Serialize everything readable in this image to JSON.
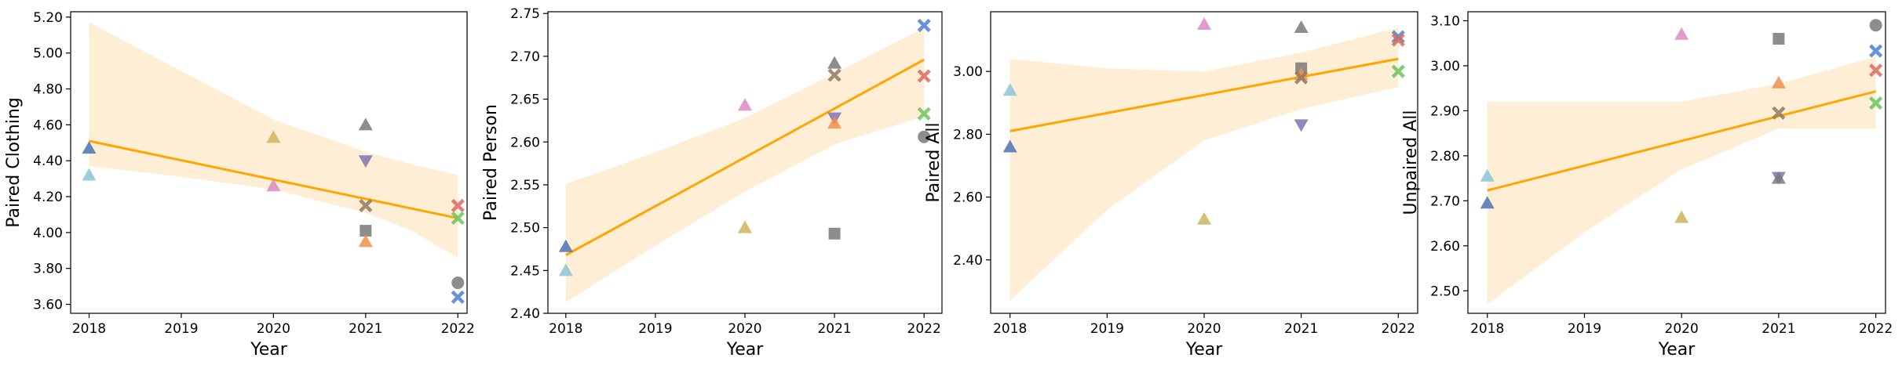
{
  "chart_data": [
    {
      "type": "scatter",
      "xlabel": "Year",
      "ylabel": "Paired Clothing",
      "xticks": [
        2018,
        2019,
        2020,
        2021,
        2022
      ],
      "yticks": [
        3.6,
        3.8,
        4.0,
        4.2,
        4.4,
        4.6,
        4.8,
        5.0,
        5.2
      ],
      "xlim": [
        2017.8,
        2022.1
      ],
      "ylim": [
        3.55,
        5.23
      ],
      "regression": {
        "start": [
          2018,
          4.51
        ],
        "end": [
          2022,
          4.08
        ]
      },
      "confidence_band": [
        [
          2018,
          4.37,
          5.17
        ],
        [
          2019,
          4.31,
          4.9
        ],
        [
          2020,
          4.24,
          4.63
        ],
        [
          2021,
          4.11,
          4.45
        ],
        [
          2021.5,
          4.01,
          4.38
        ],
        [
          2022,
          3.86,
          4.32
        ]
      ],
      "points": [
        {
          "x": 2018,
          "y": 4.47,
          "marker": "triangle-up",
          "color": "#4c72b0"
        },
        {
          "x": 2018,
          "y": 4.32,
          "marker": "triangle-up",
          "color": "#8cc5d6"
        },
        {
          "x": 2020,
          "y": 4.53,
          "marker": "triangle-up",
          "color": "#ccb45c"
        },
        {
          "x": 2020,
          "y": 4.26,
          "marker": "triangle-up",
          "color": "#da8bc3"
        },
        {
          "x": 2021,
          "y": 4.6,
          "marker": "triangle-up",
          "color": "#797979"
        },
        {
          "x": 2021,
          "y": 4.4,
          "marker": "triangle-down",
          "color": "#8172b3"
        },
        {
          "x": 2021,
          "y": 4.15,
          "marker": "x",
          "color": "#937860"
        },
        {
          "x": 2021,
          "y": 4.01,
          "marker": "square",
          "color": "#797979"
        },
        {
          "x": 2021,
          "y": 3.95,
          "marker": "triangle-up",
          "color": "#f28e4c"
        },
        {
          "x": 2022,
          "y": 4.15,
          "marker": "x",
          "color": "#dd6a5c"
        },
        {
          "x": 2022,
          "y": 4.08,
          "marker": "x",
          "color": "#6ac45c"
        },
        {
          "x": 2022,
          "y": 3.72,
          "marker": "circle",
          "color": "#797979"
        },
        {
          "x": 2022,
          "y": 3.64,
          "marker": "x",
          "color": "#4e7fd6"
        }
      ]
    },
    {
      "type": "scatter",
      "xlabel": "Year",
      "ylabel": "Paired Person",
      "xticks": [
        2018,
        2019,
        2020,
        2021,
        2022
      ],
      "yticks": [
        2.4,
        2.45,
        2.5,
        2.55,
        2.6,
        2.65,
        2.7,
        2.75
      ],
      "xlim": [
        2017.8,
        2022.2
      ],
      "ylim": [
        2.4,
        2.752
      ],
      "regression": {
        "start": [
          2018,
          2.468
        ],
        "end": [
          2022,
          2.696
        ]
      },
      "confidence_band": [
        [
          2018,
          2.413,
          2.551
        ],
        [
          2019,
          2.479,
          2.588
        ],
        [
          2020,
          2.542,
          2.628
        ],
        [
          2021,
          2.597,
          2.68
        ],
        [
          2022,
          2.63,
          2.733
        ]
      ],
      "points": [
        {
          "x": 2018,
          "y": 2.478,
          "marker": "triangle-up",
          "color": "#4c72b0"
        },
        {
          "x": 2018,
          "y": 2.45,
          "marker": "triangle-up",
          "color": "#8cc5d6"
        },
        {
          "x": 2020,
          "y": 2.643,
          "marker": "triangle-up",
          "color": "#da8bc3"
        },
        {
          "x": 2020,
          "y": 2.5,
          "marker": "triangle-up",
          "color": "#ccb45c"
        },
        {
          "x": 2021,
          "y": 2.692,
          "marker": "triangle-up",
          "color": "#797979"
        },
        {
          "x": 2021,
          "y": 2.678,
          "marker": "x",
          "color": "#937860"
        },
        {
          "x": 2021,
          "y": 2.628,
          "marker": "triangle-down",
          "color": "#8172b3"
        },
        {
          "x": 2021,
          "y": 2.622,
          "marker": "triangle-up",
          "color": "#f28e4c"
        },
        {
          "x": 2021,
          "y": 2.493,
          "marker": "square",
          "color": "#797979"
        },
        {
          "x": 2022,
          "y": 2.736,
          "marker": "x",
          "color": "#4e7fd6"
        },
        {
          "x": 2022,
          "y": 2.677,
          "marker": "x",
          "color": "#dd6a5c"
        },
        {
          "x": 2022,
          "y": 2.633,
          "marker": "x",
          "color": "#6ac45c"
        },
        {
          "x": 2022,
          "y": 2.606,
          "marker": "circle",
          "color": "#797979"
        }
      ]
    },
    {
      "type": "scatter",
      "xlabel": "Year",
      "ylabel": "Paired All",
      "xticks": [
        2018,
        2019,
        2020,
        2021,
        2022
      ],
      "yticks": [
        2.4,
        2.6,
        2.8,
        3.0
      ],
      "xlim": [
        2017.8,
        2022.2
      ],
      "ylim": [
        2.23,
        3.19
      ],
      "regression": {
        "start": [
          2018,
          2.81
        ],
        "end": [
          2022,
          3.04
        ]
      },
      "confidence_band": [
        [
          2018,
          2.27,
          3.04
        ],
        [
          2019,
          2.56,
          3.01
        ],
        [
          2020,
          2.78,
          3.0
        ],
        [
          2021,
          2.88,
          3.06
        ],
        [
          2022,
          2.95,
          3.14
        ]
      ],
      "points": [
        {
          "x": 2018,
          "y": 2.94,
          "marker": "triangle-up",
          "color": "#8cc5d6"
        },
        {
          "x": 2018,
          "y": 2.76,
          "marker": "triangle-up",
          "color": "#4c72b0"
        },
        {
          "x": 2020,
          "y": 3.15,
          "marker": "triangle-up",
          "color": "#da8bc3"
        },
        {
          "x": 2020,
          "y": 2.53,
          "marker": "triangle-up",
          "color": "#ccb45c"
        },
        {
          "x": 2021,
          "y": 3.14,
          "marker": "triangle-up",
          "color": "#797979"
        },
        {
          "x": 2021,
          "y": 3.01,
          "marker": "square",
          "color": "#797979"
        },
        {
          "x": 2021,
          "y": 2.99,
          "marker": "triangle-up",
          "color": "#f28e4c"
        },
        {
          "x": 2021,
          "y": 2.98,
          "marker": "x",
          "color": "#937860"
        },
        {
          "x": 2021,
          "y": 2.83,
          "marker": "triangle-down",
          "color": "#8172b3"
        },
        {
          "x": 2022,
          "y": 3.11,
          "marker": "x",
          "color": "#4e7fd6"
        },
        {
          "x": 2022,
          "y": 3.1,
          "marker": "x",
          "color": "#dd6a5c"
        },
        {
          "x": 2022,
          "y": 3.0,
          "marker": "x",
          "color": "#6ac45c"
        }
      ]
    },
    {
      "type": "scatter",
      "xlabel": "Year",
      "ylabel": "Unpaired All",
      "xticks": [
        2018,
        2019,
        2020,
        2021,
        2022
      ],
      "yticks": [
        2.5,
        2.6,
        2.7,
        2.8,
        2.9,
        3.0,
        3.1
      ],
      "xlim": [
        2017.8,
        2022.1
      ],
      "ylim": [
        2.45,
        3.12
      ],
      "regression": {
        "start": [
          2018,
          2.723
        ],
        "end": [
          2022,
          2.943
        ]
      },
      "confidence_band": [
        [
          2018,
          2.47,
          2.92
        ],
        [
          2019,
          2.63,
          2.92
        ],
        [
          2020,
          2.77,
          2.92
        ],
        [
          2021,
          2.86,
          2.96
        ],
        [
          2022,
          2.86,
          3.02
        ]
      ],
      "points": [
        {
          "x": 2018,
          "y": 2.755,
          "marker": "triangle-up",
          "color": "#8cc5d6"
        },
        {
          "x": 2018,
          "y": 2.695,
          "marker": "triangle-up",
          "color": "#4c72b0"
        },
        {
          "x": 2020,
          "y": 3.07,
          "marker": "triangle-up",
          "color": "#da8bc3"
        },
        {
          "x": 2020,
          "y": 2.663,
          "marker": "triangle-up",
          "color": "#ccb45c"
        },
        {
          "x": 2021,
          "y": 3.06,
          "marker": "square",
          "color": "#797979"
        },
        {
          "x": 2021,
          "y": 2.962,
          "marker": "triangle-up",
          "color": "#f28e4c"
        },
        {
          "x": 2021,
          "y": 2.895,
          "marker": "x",
          "color": "#937860"
        },
        {
          "x": 2021,
          "y": 2.752,
          "marker": "triangle-down",
          "color": "#8172b3"
        },
        {
          "x": 2021,
          "y": 2.75,
          "marker": "triangle-up",
          "color": "#797979"
        },
        {
          "x": 2022,
          "y": 3.09,
          "marker": "circle",
          "color": "#797979"
        },
        {
          "x": 2022,
          "y": 3.033,
          "marker": "x",
          "color": "#4e7fd6"
        },
        {
          "x": 2022,
          "y": 2.99,
          "marker": "x",
          "color": "#dd6a5c"
        },
        {
          "x": 2022,
          "y": 2.917,
          "marker": "x",
          "color": "#6ac45c"
        }
      ]
    }
  ],
  "style": {
    "regression_color": "#ffa500",
    "band_color": "#ffeed6"
  }
}
